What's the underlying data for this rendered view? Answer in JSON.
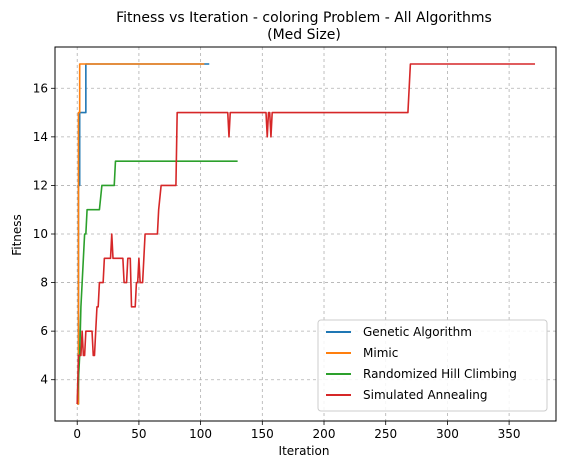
{
  "chart_data": {
    "type": "line",
    "title": "Fitness vs Iteration - coloring Problem - All Algorithms",
    "subtitle": "(Med Size)",
    "xlabel": "Iteration",
    "ylabel": "Fitness",
    "xlim": [
      -18,
      388
    ],
    "ylim": [
      2.3,
      17.7
    ],
    "xticks": [
      0,
      50,
      100,
      150,
      200,
      250,
      300,
      350
    ],
    "yticks": [
      4,
      6,
      8,
      10,
      12,
      14,
      16
    ],
    "grid": true,
    "legend_position": "lower-right",
    "series": [
      {
        "name": "Genetic Algorithm",
        "color": "#1f77b4",
        "x": [
          0,
          1,
          1,
          2,
          2,
          5,
          5,
          6,
          6,
          7,
          7,
          107
        ],
        "y": [
          3,
          3,
          12,
          12,
          15,
          15,
          15,
          15,
          15,
          15,
          17,
          17
        ]
      },
      {
        "name": "Mimic",
        "color": "#ff7f0e",
        "x": [
          0,
          1,
          1,
          2,
          2,
          103
        ],
        "y": [
          3,
          3,
          15,
          15,
          17,
          17
        ]
      },
      {
        "name": "Randomized Hill Climbing",
        "color": "#2ca02c",
        "x": [
          0,
          2,
          3,
          4,
          5,
          6,
          7,
          8,
          10,
          11,
          12,
          18,
          20,
          22,
          24,
          30,
          31,
          32,
          130
        ],
        "y": [
          3,
          5,
          7,
          8,
          9,
          10,
          10,
          11,
          11,
          11,
          11,
          11,
          12,
          12,
          12,
          12,
          13,
          13,
          13
        ]
      },
      {
        "name": "Simulated Annealing",
        "color": "#d62728",
        "x": [
          0,
          1,
          2,
          3,
          4,
          5,
          6,
          7,
          8,
          10,
          12,
          13,
          14,
          15,
          16,
          17,
          18,
          19,
          20,
          21,
          22,
          23,
          24,
          25,
          26,
          27,
          28,
          29,
          30,
          31,
          32,
          33,
          34,
          35,
          36,
          37,
          38,
          39,
          40,
          41,
          42,
          43,
          44,
          45,
          46,
          47,
          48,
          49,
          50,
          51,
          52,
          53,
          54,
          55,
          56,
          57,
          60,
          65,
          66,
          68,
          70,
          72,
          78,
          80,
          81,
          82,
          100,
          120,
          122,
          123,
          124,
          125,
          150,
          152,
          153,
          154,
          155,
          156,
          157,
          158,
          159,
          160,
          200,
          268,
          270,
          371
        ],
        "y": [
          3,
          5,
          5,
          5,
          6,
          5,
          5,
          6,
          6,
          6,
          6,
          5,
          5,
          6,
          7,
          7,
          8,
          8,
          8,
          8,
          9,
          9,
          9,
          9,
          9,
          9,
          10,
          9,
          9,
          9,
          9,
          9,
          9,
          9,
          9,
          9,
          8,
          8,
          8,
          9,
          9,
          9,
          7,
          7,
          7,
          7,
          8,
          8,
          9,
          8,
          8,
          8,
          9,
          10,
          10,
          10,
          10,
          10,
          11,
          12,
          12,
          12,
          12,
          12,
          15,
          15,
          15,
          15,
          15,
          14,
          15,
          15,
          15,
          15,
          15,
          14,
          15,
          15,
          14,
          15,
          15,
          15,
          15,
          15,
          17,
          17
        ]
      }
    ]
  }
}
